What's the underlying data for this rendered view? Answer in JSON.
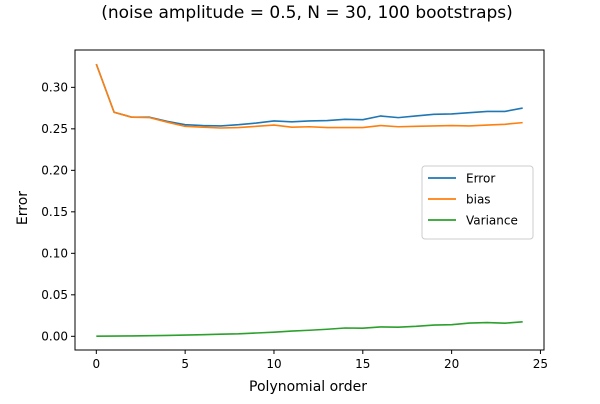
{
  "chart_data": {
    "type": "line",
    "title": "(noise amplitude = 0.5, N = 30, 100 bootstraps)",
    "xlabel": "Polynomial order",
    "ylabel": "Error",
    "xlim": [
      -1.2,
      25.2
    ],
    "ylim": [
      -0.0165,
      0.345
    ],
    "xticks": [
      0,
      5,
      10,
      15,
      20,
      25
    ],
    "xtick_labels": [
      "0",
      "5",
      "10",
      "15",
      "20",
      "25"
    ],
    "yticks": [
      0.0,
      0.05,
      0.1,
      0.15,
      0.2,
      0.25,
      0.3
    ],
    "ytick_labels": [
      "0.00",
      "0.05",
      "0.10",
      "0.15",
      "0.20",
      "0.25",
      "0.30"
    ],
    "grid": false,
    "legend_position": "center-right",
    "x": [
      0,
      1,
      2,
      3,
      4,
      5,
      6,
      7,
      8,
      9,
      10,
      11,
      12,
      13,
      14,
      15,
      16,
      17,
      18,
      19,
      20,
      21,
      22,
      23,
      24
    ],
    "series": [
      {
        "name": "Error",
        "color": "#1f77b4",
        "values": [
          0.328,
          0.27,
          0.264,
          0.264,
          0.259,
          0.255,
          0.254,
          0.2535,
          0.255,
          0.257,
          0.2595,
          0.2585,
          0.2595,
          0.26,
          0.2615,
          0.261,
          0.2655,
          0.2635,
          0.2655,
          0.2675,
          0.268,
          0.2695,
          0.271,
          0.271,
          0.275
        ]
      },
      {
        "name": "bias",
        "color": "#ff7f0e",
        "values": [
          0.328,
          0.27,
          0.264,
          0.2635,
          0.258,
          0.253,
          0.252,
          0.251,
          0.2515,
          0.253,
          0.2545,
          0.252,
          0.2525,
          0.2515,
          0.2515,
          0.2515,
          0.254,
          0.2525,
          0.253,
          0.2535,
          0.254,
          0.2535,
          0.2545,
          0.2555,
          0.2575
        ]
      },
      {
        "name": "Variance",
        "color": "#2ca02c",
        "values": [
          0.0002,
          0.0003,
          0.0005,
          0.0007,
          0.001,
          0.0015,
          0.002,
          0.0025,
          0.003,
          0.004,
          0.005,
          0.0063,
          0.0073,
          0.0085,
          0.01,
          0.0098,
          0.0113,
          0.011,
          0.012,
          0.0135,
          0.014,
          0.016,
          0.0165,
          0.0158,
          0.0175
        ]
      }
    ]
  }
}
